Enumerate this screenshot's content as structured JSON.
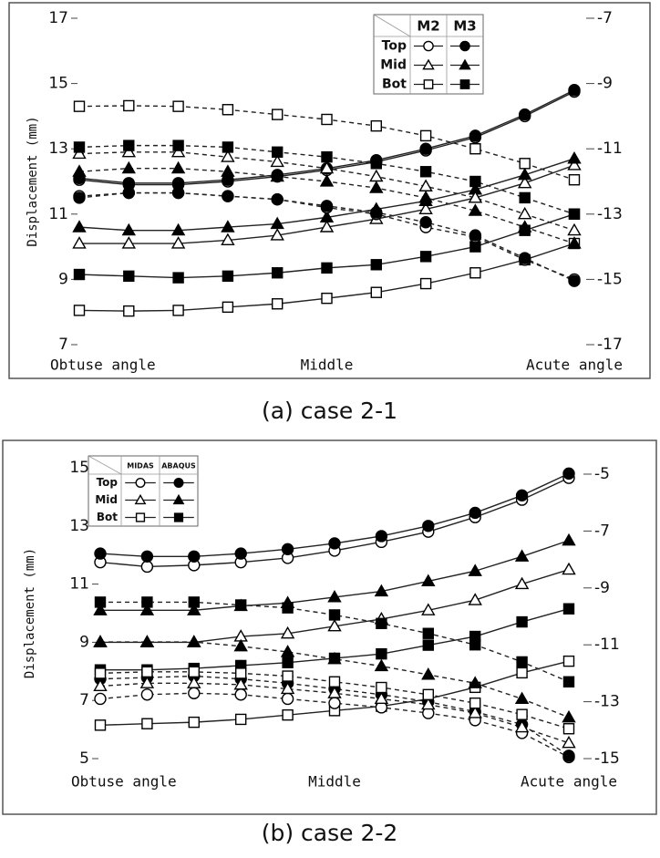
{
  "chart_data": [
    {
      "type": "line",
      "title": "(a) case 2-1",
      "ylabel": "Displacement (mm)",
      "categories": [
        "Obtuse angle",
        null,
        null,
        null,
        null,
        "Middle",
        null,
        null,
        null,
        null,
        "Acute angle"
      ],
      "ylim": [
        7,
        17
      ],
      "yticks": [
        7,
        9,
        11,
        13,
        15,
        17
      ],
      "y2lim": [
        -17,
        -7
      ],
      "y2ticks": [
        -17,
        -15,
        -13,
        -11,
        -9,
        -7
      ],
      "legend": {
        "columns": [
          "M2",
          "M3"
        ],
        "rows": [
          "Top",
          "Mid",
          "Bot"
        ]
      },
      "series": [
        {
          "group": "Top",
          "model": "M2",
          "marker": "circle",
          "filled": false,
          "dashed": false,
          "axis": "y",
          "values": [
            12.05,
            11.9,
            11.9,
            12.0,
            12.15,
            12.35,
            12.6,
            12.95,
            13.35,
            14.0,
            14.75
          ]
        },
        {
          "group": "Top",
          "model": "M3",
          "marker": "circle",
          "filled": true,
          "dashed": false,
          "axis": "y",
          "values": [
            12.1,
            11.95,
            11.95,
            12.05,
            12.2,
            12.4,
            12.65,
            13.0,
            13.4,
            14.05,
            14.8
          ]
        },
        {
          "group": "Mid",
          "model": "M2",
          "marker": "triangle",
          "filled": false,
          "dashed": false,
          "axis": "y",
          "values": [
            10.1,
            10.1,
            10.1,
            10.2,
            10.35,
            10.6,
            10.85,
            11.15,
            11.5,
            11.95,
            12.5
          ]
        },
        {
          "group": "Mid",
          "model": "M3",
          "marker": "triangle",
          "filled": true,
          "dashed": false,
          "axis": "y",
          "values": [
            10.6,
            10.5,
            10.5,
            10.6,
            10.7,
            10.9,
            11.15,
            11.4,
            11.75,
            12.2,
            12.7
          ]
        },
        {
          "group": "Bot",
          "model": "M2",
          "marker": "square",
          "filled": false,
          "dashed": false,
          "axis": "y",
          "values": [
            8.05,
            8.03,
            8.05,
            8.15,
            8.25,
            8.42,
            8.6,
            8.87,
            9.2,
            9.6,
            10.1
          ]
        },
        {
          "group": "Bot",
          "model": "M3",
          "marker": "square",
          "filled": true,
          "dashed": false,
          "axis": "y",
          "values": [
            9.15,
            9.1,
            9.05,
            9.1,
            9.2,
            9.35,
            9.45,
            9.7,
            10.0,
            10.5,
            11.0
          ]
        },
        {
          "group": "Top",
          "model": "M2",
          "marker": "circle",
          "filled": false,
          "dashed": true,
          "axis": "y2",
          "values": [
            -12.45,
            -12.35,
            -12.35,
            -12.45,
            -12.55,
            -12.8,
            -13.0,
            -13.4,
            -13.7,
            -14.4,
            -15.0
          ]
        },
        {
          "group": "Top",
          "model": "M3",
          "marker": "circle",
          "filled": true,
          "dashed": true,
          "axis": "y2",
          "values": [
            -12.5,
            -12.35,
            -12.35,
            -12.45,
            -12.55,
            -12.75,
            -12.95,
            -13.25,
            -13.65,
            -14.35,
            -15.05
          ]
        },
        {
          "group": "Mid",
          "model": "M2",
          "marker": "triangle",
          "filled": false,
          "dashed": true,
          "axis": "y2",
          "values": [
            -11.15,
            -11.1,
            -11.1,
            -11.25,
            -11.4,
            -11.6,
            -11.85,
            -12.15,
            -12.5,
            -13.0,
            -13.5
          ]
        },
        {
          "group": "Mid",
          "model": "M3",
          "marker": "triangle",
          "filled": true,
          "dashed": true,
          "axis": "y2",
          "values": [
            -11.7,
            -11.6,
            -11.6,
            -11.7,
            -11.85,
            -12.0,
            -12.2,
            -12.5,
            -12.9,
            -13.4,
            -13.9
          ]
        },
        {
          "group": "Bot",
          "model": "M2",
          "marker": "square",
          "filled": false,
          "dashed": true,
          "axis": "y2",
          "values": [
            -9.7,
            -9.68,
            -9.7,
            -9.8,
            -9.95,
            -10.1,
            -10.3,
            -10.6,
            -11.0,
            -11.45,
            -11.95
          ]
        },
        {
          "group": "Bot",
          "model": "M3",
          "marker": "square",
          "filled": true,
          "dashed": true,
          "axis": "y2",
          "values": [
            -10.95,
            -10.9,
            -10.9,
            -10.95,
            -11.1,
            -11.25,
            -11.45,
            -11.7,
            -12.0,
            -12.5,
            -13.0
          ]
        }
      ]
    },
    {
      "type": "line",
      "title": "(b) case 2-2",
      "ylabel": "Displacement (mm)",
      "categories": [
        "Obtuse angle",
        null,
        null,
        null,
        null,
        "Middle",
        null,
        null,
        null,
        null,
        "Acute angle"
      ],
      "ylim": [
        5,
        15
      ],
      "yticks": [
        5,
        7,
        9,
        11,
        13,
        15
      ],
      "y2lim": [
        -15,
        -5
      ],
      "y2ticks": [
        -15,
        -13,
        -11,
        -9,
        -7,
        -5
      ],
      "legend": {
        "columns": [
          "MIDAS",
          "ABAQUS"
        ],
        "rows": [
          "Top",
          "Mid",
          "Bot"
        ]
      },
      "series": [
        {
          "group": "Top",
          "model": "MIDAS",
          "marker": "circle",
          "filled": false,
          "dashed": false,
          "axis": "y",
          "values": [
            11.75,
            11.6,
            11.65,
            11.75,
            11.9,
            12.15,
            12.45,
            12.8,
            13.3,
            13.9,
            14.65
          ]
        },
        {
          "group": "Top",
          "model": "ABAQUS",
          "marker": "circle",
          "filled": true,
          "dashed": false,
          "axis": "y",
          "values": [
            12.05,
            11.95,
            11.95,
            12.05,
            12.2,
            12.4,
            12.65,
            13.0,
            13.45,
            14.05,
            14.8
          ]
        },
        {
          "group": "Mid",
          "model": "MIDAS",
          "marker": "triangle",
          "filled": false,
          "dashed": false,
          "axis": "y",
          "values": [
            9.0,
            9.0,
            9.0,
            9.2,
            9.3,
            9.55,
            9.8,
            10.1,
            10.45,
            11.0,
            11.5
          ]
        },
        {
          "group": "Mid",
          "model": "ABAQUS",
          "marker": "triangle",
          "filled": true,
          "dashed": false,
          "axis": "y",
          "values": [
            10.1,
            10.1,
            10.1,
            10.25,
            10.35,
            10.55,
            10.75,
            11.1,
            11.45,
            11.95,
            12.5
          ]
        },
        {
          "group": "Bot",
          "model": "MIDAS",
          "marker": "square",
          "filled": false,
          "dashed": false,
          "axis": "y",
          "values": [
            6.15,
            6.2,
            6.25,
            6.35,
            6.5,
            6.65,
            6.8,
            7.05,
            7.45,
            7.95,
            8.35
          ]
        },
        {
          "group": "Bot",
          "model": "ABAQUS",
          "marker": "square",
          "filled": true,
          "dashed": false,
          "axis": "y",
          "values": [
            8.05,
            8.05,
            8.1,
            8.2,
            8.3,
            8.45,
            8.6,
            8.9,
            9.2,
            9.7,
            10.15
          ]
        },
        {
          "group": "Top",
          "model": "MIDAS",
          "marker": "circle",
          "filled": false,
          "dashed": true,
          "axis": "y2",
          "values": [
            -12.9,
            -12.75,
            -12.7,
            -12.75,
            -12.9,
            -13.05,
            -13.2,
            -13.4,
            -13.65,
            -14.1,
            -14.95
          ]
        },
        {
          "group": "Top",
          "model": "ABAQUS",
          "marker": "circle",
          "filled": true,
          "dashed": true,
          "axis": "y2",
          "values": [
            -12.2,
            -12.15,
            -12.1,
            -12.2,
            -12.35,
            -12.55,
            -12.75,
            -13.0,
            -13.35,
            -13.8,
            -14.9
          ]
        },
        {
          "group": "Mid",
          "model": "MIDAS",
          "marker": "triangle",
          "filled": false,
          "dashed": true,
          "axis": "y2",
          "values": [
            -12.45,
            -12.35,
            -12.35,
            -12.4,
            -12.55,
            -12.7,
            -12.9,
            -13.1,
            -13.4,
            -13.9,
            -14.45
          ]
        },
        {
          "group": "Mid",
          "model": "ABAQUS",
          "marker": "triangle",
          "filled": true,
          "dashed": true,
          "axis": "y2",
          "values": [
            -10.9,
            -10.9,
            -10.9,
            -11.05,
            -11.25,
            -11.5,
            -11.75,
            -12.05,
            -12.35,
            -12.9,
            -13.55
          ]
        },
        {
          "group": "Bot",
          "model": "MIDAS",
          "marker": "square",
          "filled": false,
          "dashed": true,
          "axis": "y2",
          "values": [
            -12.0,
            -11.95,
            -11.95,
            -12.0,
            -12.1,
            -12.3,
            -12.5,
            -12.75,
            -13.05,
            -13.45,
            -13.95
          ]
        },
        {
          "group": "Bot",
          "model": "ABAQUS",
          "marker": "square",
          "filled": true,
          "dashed": true,
          "axis": "y2",
          "values": [
            -9.5,
            -9.5,
            -9.5,
            -9.6,
            -9.7,
            -9.95,
            -10.25,
            -10.6,
            -11.0,
            -11.6,
            -12.3
          ]
        }
      ]
    }
  ]
}
